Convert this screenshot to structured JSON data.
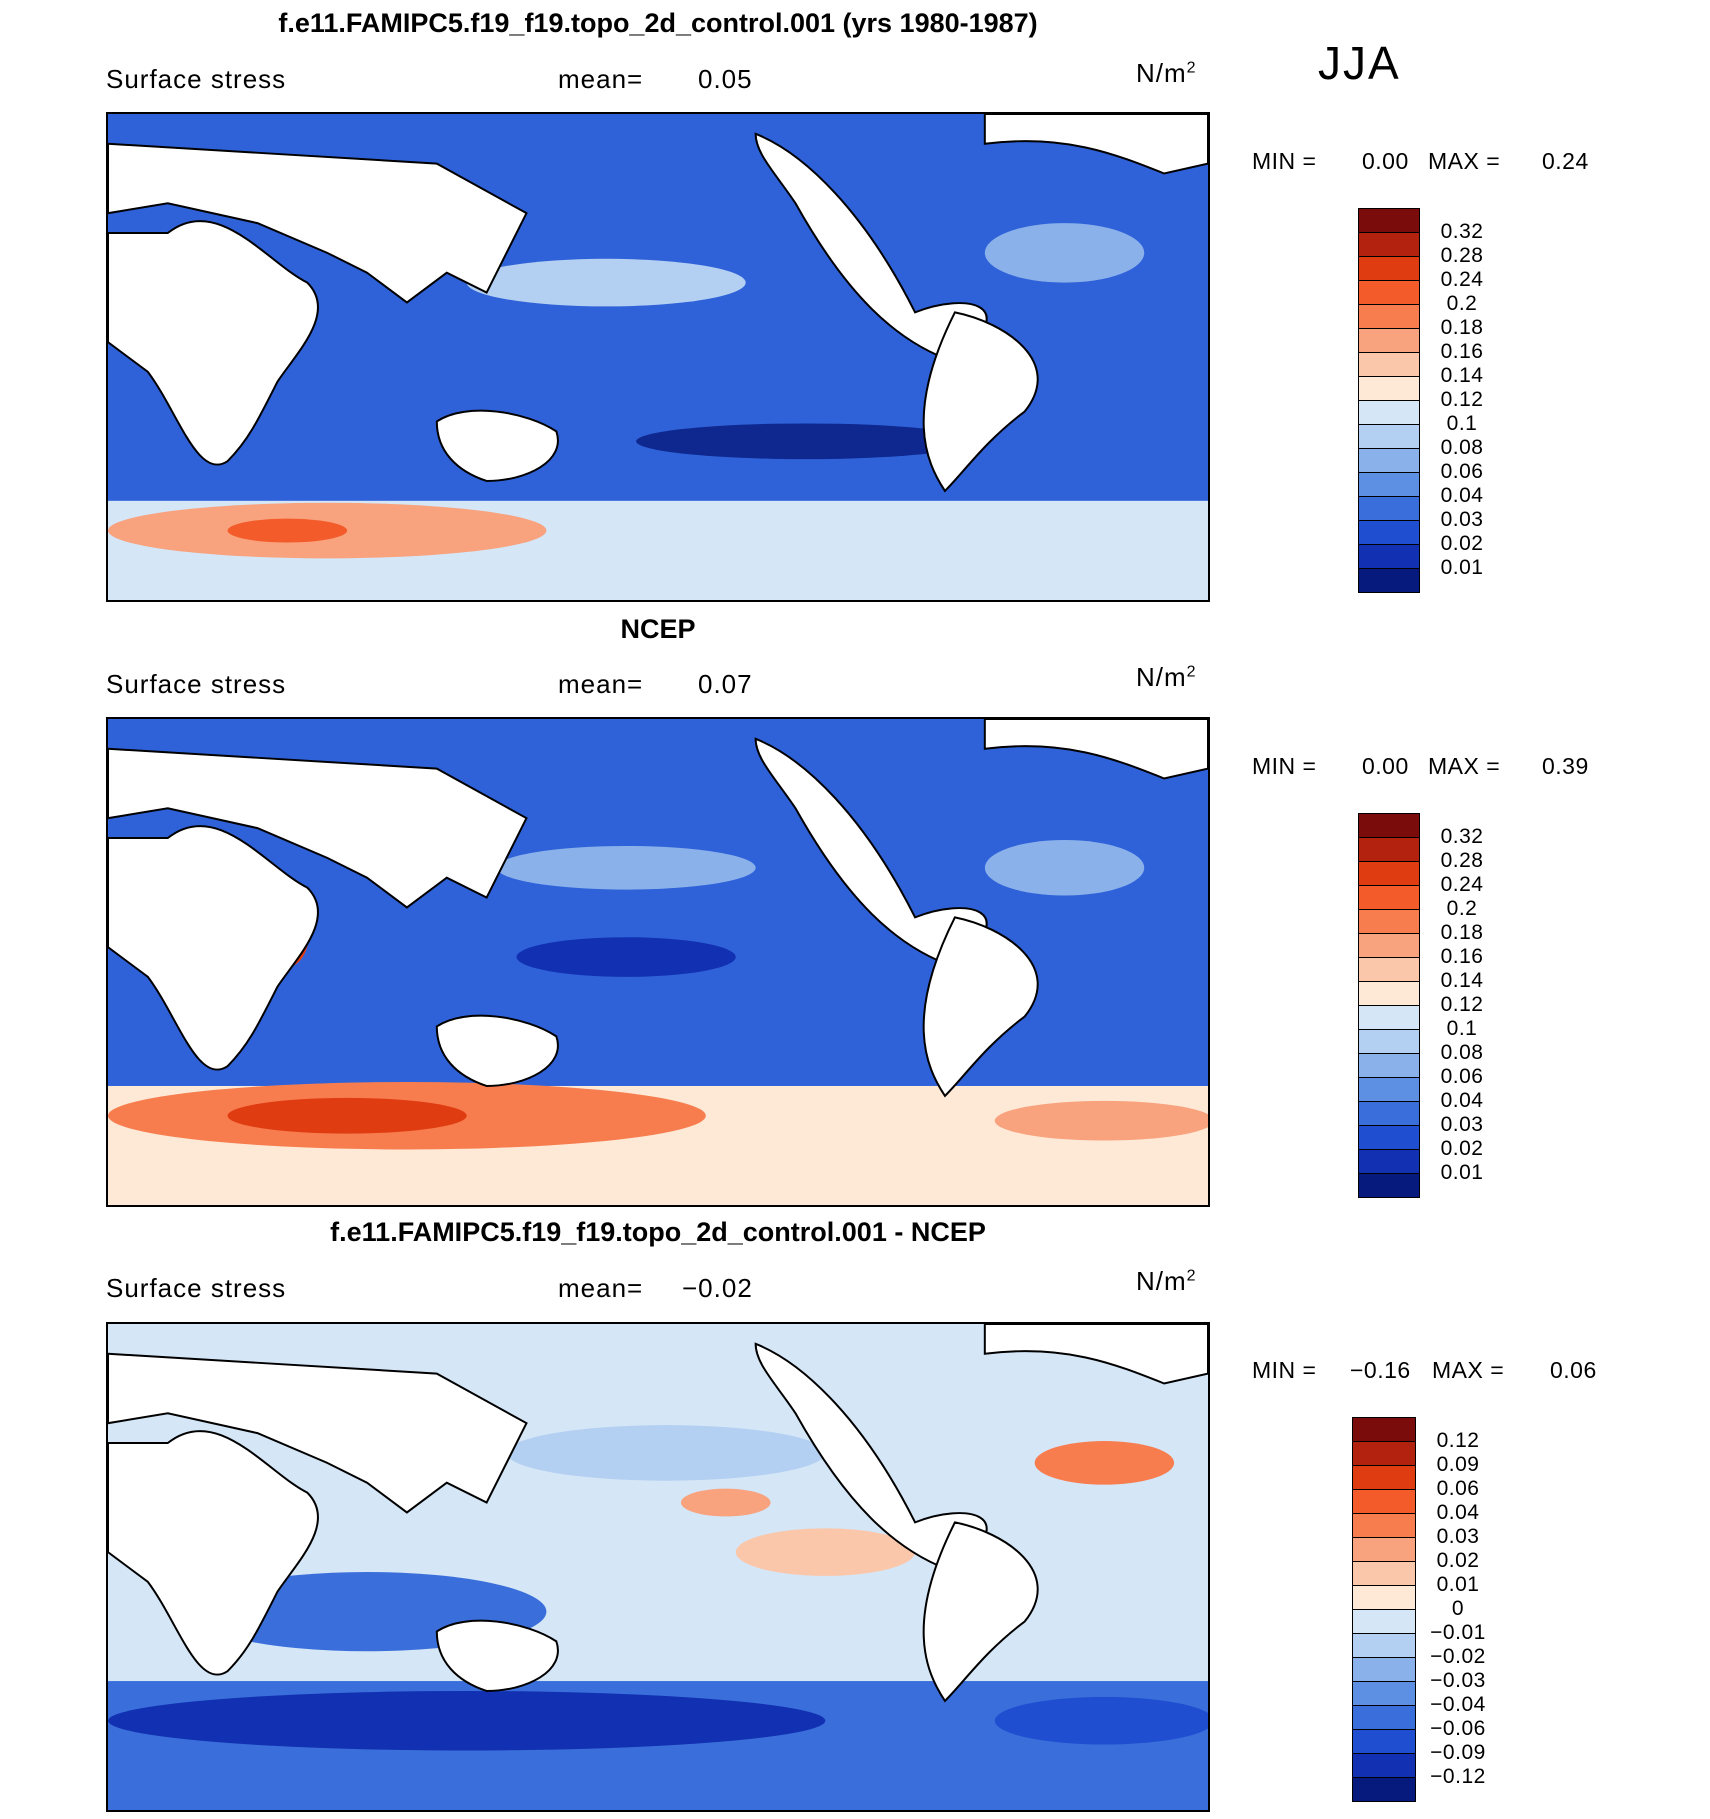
{
  "season": "JJA",
  "units_base": "N/m",
  "units_exp": "2",
  "panels": [
    {
      "title": "f.e11.FAMIPC5.f19_f19.topo_2d_control.001 (yrs 1980-1987)",
      "variable": "Surface stress",
      "mean_label": "mean=",
      "mean_value": "0.05",
      "min_label": "MIN =",
      "min_value": "0.00",
      "max_label": "MAX =",
      "max_value": "0.24",
      "colorbar_labels": [
        "0.32",
        "0.28",
        "0.24",
        "0.2",
        "0.18",
        "0.16",
        "0.14",
        "0.12",
        "0.1",
        "0.08",
        "0.06",
        "0.04",
        "0.03",
        "0.02",
        "0.01"
      ],
      "colorbar_colors": [
        "#7a0c0c",
        "#b3210f",
        "#e03c12",
        "#f35b2a",
        "#f77d4f",
        "#f9a27e",
        "#fbc7ab",
        "#fde9d6",
        "#d5e6f7",
        "#b3cff1",
        "#8ab1ea",
        "#5d8fe2",
        "#3a6fdb",
        "#1f4fd0",
        "#1131b2",
        "#061a7e"
      ]
    },
    {
      "title": "NCEP",
      "variable": "Surface stress",
      "mean_label": "mean=",
      "mean_value": "0.07",
      "min_label": "MIN =",
      "min_value": "0.00",
      "max_label": "MAX =",
      "max_value": "0.39",
      "colorbar_labels": [
        "0.32",
        "0.28",
        "0.24",
        "0.2",
        "0.18",
        "0.16",
        "0.14",
        "0.12",
        "0.1",
        "0.08",
        "0.06",
        "0.04",
        "0.03",
        "0.02",
        "0.01"
      ],
      "colorbar_colors": [
        "#7a0c0c",
        "#b3210f",
        "#e03c12",
        "#f35b2a",
        "#f77d4f",
        "#f9a27e",
        "#fbc7ab",
        "#fde9d6",
        "#d5e6f7",
        "#b3cff1",
        "#8ab1ea",
        "#5d8fe2",
        "#3a6fdb",
        "#1f4fd0",
        "#1131b2",
        "#061a7e"
      ]
    },
    {
      "title": "f.e11.FAMIPC5.f19_f19.topo_2d_control.001 - NCEP",
      "variable": "Surface stress",
      "mean_label": "mean=",
      "mean_value": "−0.02",
      "min_label": "MIN =",
      "min_value": "−0.16",
      "max_label": "MAX =",
      "max_value": "0.06",
      "colorbar_labels": [
        "0.12",
        "0.09",
        "0.06",
        "0.04",
        "0.03",
        "0.02",
        "0.01",
        "0",
        "−0.01",
        "−0.02",
        "−0.03",
        "−0.04",
        "−0.06",
        "−0.09",
        "−0.12"
      ],
      "colorbar_colors": [
        "#7a0c0c",
        "#b3210f",
        "#e03c12",
        "#f35b2a",
        "#f77d4f",
        "#f9a27e",
        "#fbc7ab",
        "#fde9d6",
        "#d5e6f7",
        "#b3cff1",
        "#8ab1ea",
        "#5d8fe2",
        "#3a6fdb",
        "#1f4fd0",
        "#1131b2",
        "#061a7e"
      ]
    }
  ]
}
